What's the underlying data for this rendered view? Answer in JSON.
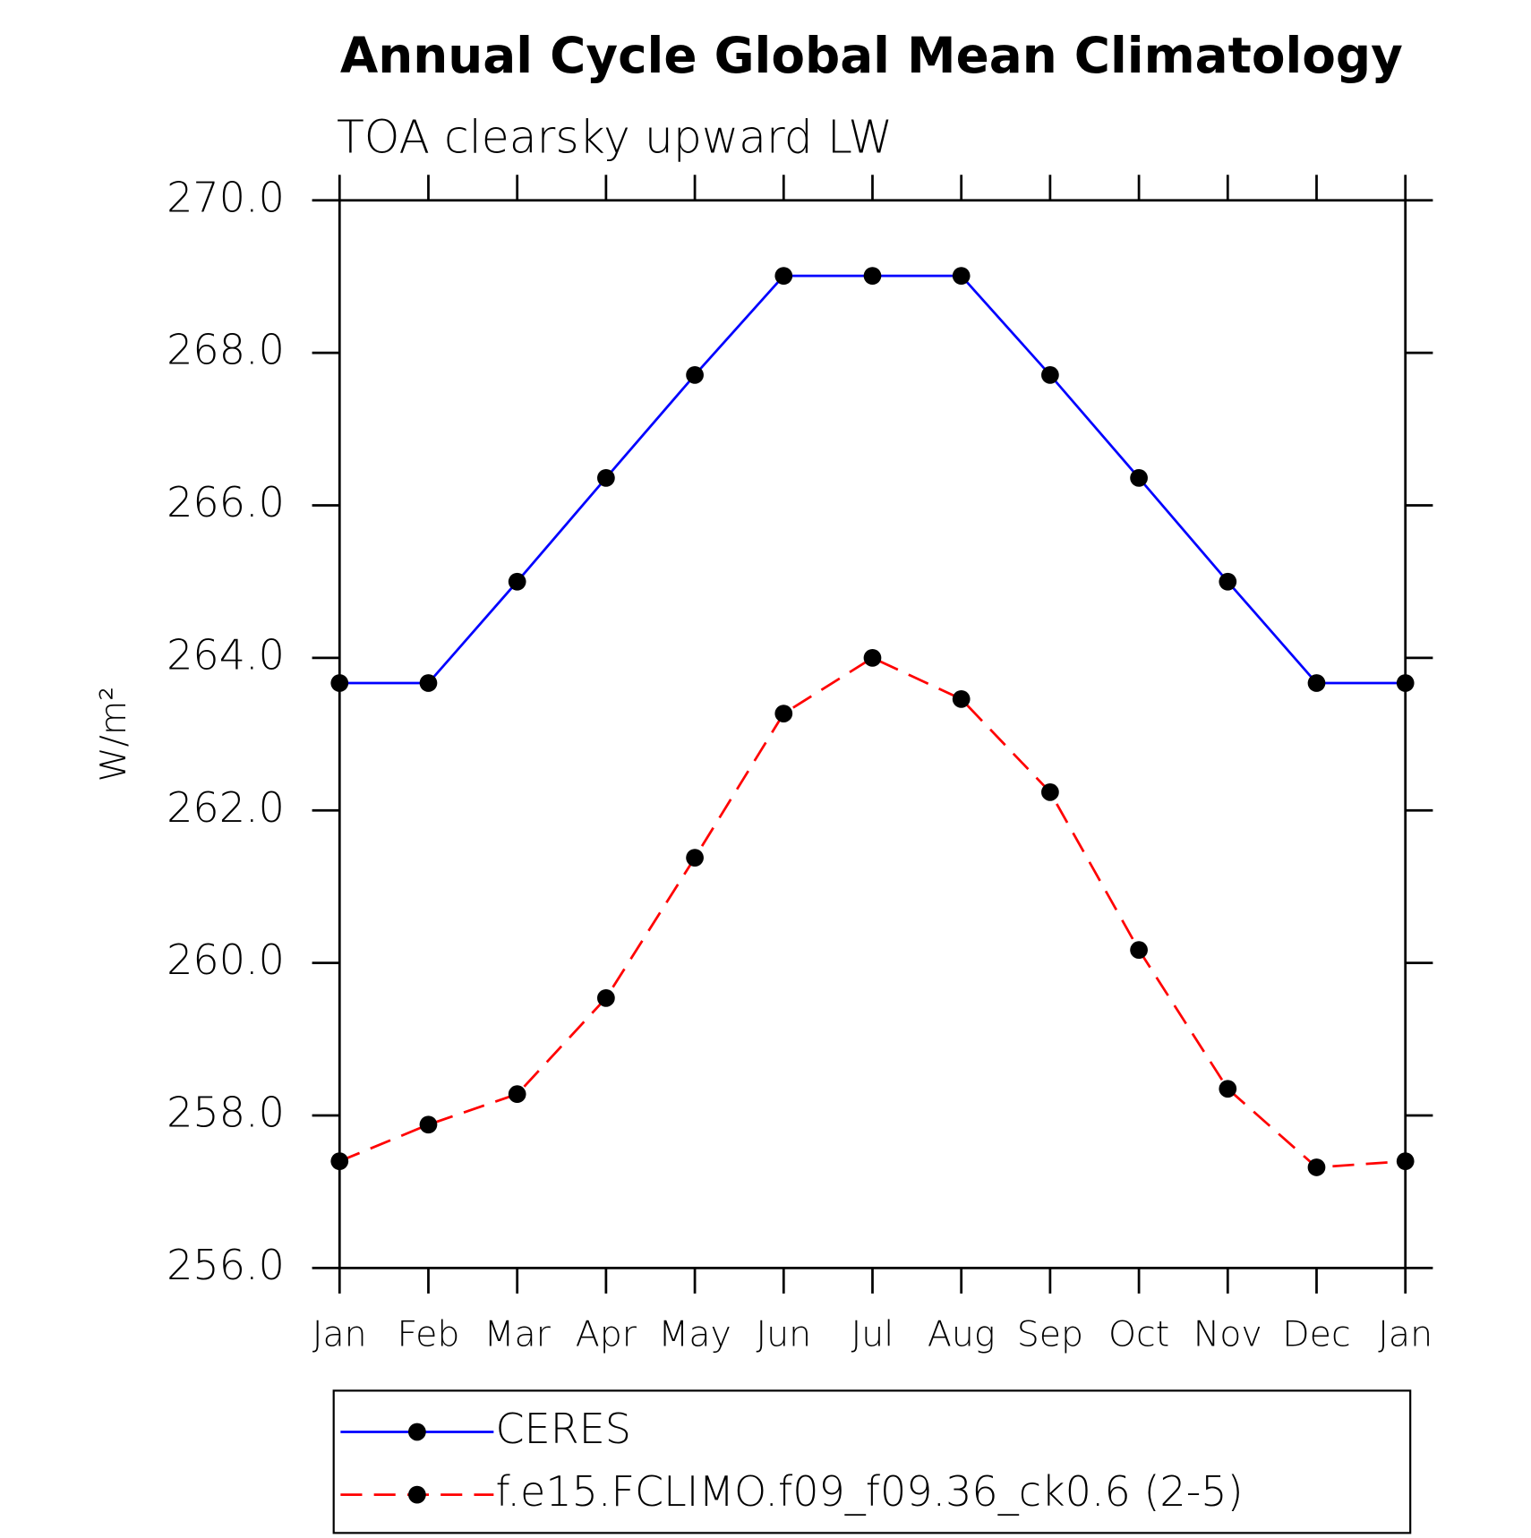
{
  "chart_data": {
    "type": "line",
    "title": "Annual Cycle Global Mean Climatology",
    "subtitle": "TOA clearsky upward LW",
    "y_label": "W/m²",
    "categories": [
      "Jan",
      "Feb",
      "Mar",
      "Apr",
      "May",
      "Jun",
      "Jul",
      "Aug",
      "Sep",
      "Oct",
      "Nov",
      "Dec",
      "Jan"
    ],
    "series": [
      {
        "name": "CERES",
        "color": "#0000ff",
        "dash": false,
        "values": [
          263.67,
          263.67,
          265.0,
          266.36,
          267.71,
          269.01,
          269.01,
          269.01,
          267.71,
          266.36,
          265.0,
          263.67,
          263.67
        ]
      },
      {
        "name": "f.e15.FCLIMO.f09_f09.36_ck0.6 (2-5)",
        "color": "#ff0000",
        "dash": true,
        "values": [
          257.4,
          257.88,
          258.28,
          259.54,
          261.38,
          263.27,
          264.0,
          263.46,
          262.24,
          260.17,
          258.35,
          257.32,
          257.4
        ]
      }
    ],
    "ylim": [
      256,
      270
    ],
    "yticks": [
      {
        "value": 256,
        "label": "256.0"
      },
      {
        "value": 258,
        "label": "258.0"
      },
      {
        "value": 260,
        "label": "260.0"
      },
      {
        "value": 262,
        "label": "262.0"
      },
      {
        "value": 264,
        "label": "264.0"
      },
      {
        "value": 266,
        "label": "266.0"
      },
      {
        "value": 268,
        "label": "268.0"
      },
      {
        "value": 270,
        "label": "270.0"
      }
    ],
    "grid": false
  }
}
